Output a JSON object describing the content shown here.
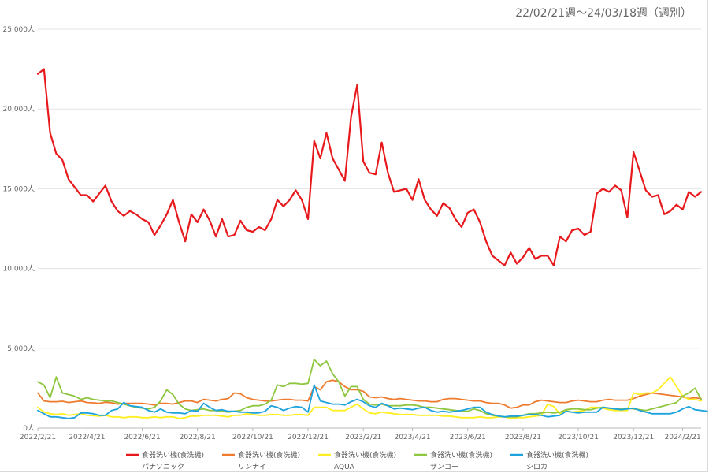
{
  "header": {
    "period": "22/02/21週〜24/03/18週（週別）"
  },
  "chart_data": {
    "type": "line",
    "title": "",
    "xlabel": "",
    "ylabel": "",
    "ylim": [
      0,
      25000
    ],
    "yticks": [
      0,
      5000,
      10000,
      15000,
      20000,
      25000
    ],
    "ytick_labels": [
      "0人",
      "5,000人",
      "10,000人",
      "15,000人",
      "20,000人",
      "25,000人"
    ],
    "xtick_labels": [
      "2022/2/21",
      "2022/4/21",
      "2022/6/21",
      "2022/8/21",
      "2022/10/21",
      "2022/12/21",
      "2023/2/21",
      "2023/4/21",
      "2023/6/21",
      "2023/8/21",
      "2023/10/21",
      "2023/12/21",
      "2024/2/21"
    ],
    "xtick_week_index": [
      0,
      8,
      17,
      26,
      35,
      44,
      53,
      61,
      70,
      79,
      88,
      97,
      105
    ],
    "x_week_count": 109,
    "grid": true,
    "legend_position": "bottom",
    "series": [
      {
        "name": "食器洗い機(食洗機)",
        "brand": "パナソニック",
        "color": "#e8191c",
        "values": [
          22200,
          22500,
          18500,
          17200,
          16800,
          15600,
          15100,
          14600,
          14600,
          14200,
          14700,
          15200,
          14200,
          13600,
          13300,
          13600,
          13400,
          13100,
          12900,
          12100,
          12700,
          13400,
          14300,
          12900,
          11700,
          13400,
          12900,
          13700,
          13000,
          12000,
          13100,
          12000,
          12100,
          13000,
          12400,
          12300,
          12600,
          12400,
          13100,
          14300,
          13900,
          14300,
          14900,
          14300,
          13100,
          18000,
          16900,
          18500,
          16900,
          16200,
          15500,
          19500,
          21500,
          16700,
          16000,
          15900,
          17900,
          16000,
          14800,
          14900,
          15000,
          14300,
          15600,
          14300,
          13700,
          13300,
          14100,
          13800,
          13100,
          12600,
          13500,
          13700,
          12900,
          11700,
          10800,
          10500,
          10200,
          11000,
          10300,
          10700,
          11300,
          10600,
          10800,
          10800,
          10200,
          12000,
          11700,
          12400,
          12500,
          12100,
          12300,
          14700,
          15000,
          14800,
          15200,
          14900,
          13200,
          17300,
          16100,
          14900,
          14500,
          14600,
          13400,
          13600,
          14000,
          13700,
          14800,
          14500,
          14800
        ]
      },
      {
        "name": "食器洗い機(食洗機)",
        "brand": "リンナイ",
        "color": "#ee7b2e",
        "values": [
          2200,
          1700,
          1650,
          1650,
          1680,
          1600,
          1650,
          1700,
          1600,
          1580,
          1550,
          1620,
          1580,
          1500,
          1550,
          1550,
          1550,
          1550,
          1500,
          1450,
          1550,
          1550,
          1500,
          1600,
          1700,
          1700,
          1600,
          1800,
          1750,
          1700,
          1800,
          1850,
          2200,
          2150,
          1900,
          1800,
          1750,
          1700,
          1700,
          1750,
          1800,
          1800,
          1750,
          1750,
          1700,
          2600,
          2400,
          2900,
          3000,
          2900,
          2600,
          2400,
          2400,
          2300,
          1950,
          1900,
          1950,
          1850,
          1800,
          1850,
          1800,
          1750,
          1700,
          1700,
          1650,
          1650,
          1800,
          1850,
          1850,
          1800,
          1750,
          1700,
          1700,
          1600,
          1550,
          1550,
          1450,
          1250,
          1300,
          1450,
          1450,
          1650,
          1750,
          1700,
          1650,
          1600,
          1600,
          1700,
          1750,
          1700,
          1650,
          1650,
          1750,
          1800,
          1750,
          1750,
          1750,
          1850,
          2000,
          2100,
          2200,
          2150,
          2100,
          2050,
          2000,
          1950,
          1850,
          1900,
          1850
        ]
      },
      {
        "name": "食器洗い機(食洗機)",
        "brand": "AQUA",
        "color": "#ffee22",
        "values": [
          1300,
          1000,
          900,
          850,
          900,
          800,
          850,
          900,
          800,
          780,
          750,
          800,
          700,
          700,
          650,
          700,
          700,
          650,
          650,
          700,
          650,
          700,
          700,
          600,
          650,
          750,
          750,
          800,
          800,
          800,
          750,
          700,
          800,
          800,
          900,
          850,
          800,
          800,
          850,
          850,
          800,
          800,
          850,
          850,
          800,
          1300,
          1300,
          1300,
          1100,
          1100,
          1100,
          1300,
          1500,
          1200,
          950,
          900,
          1000,
          950,
          900,
          850,
          850,
          850,
          800,
          800,
          800,
          800,
          750,
          750,
          700,
          650,
          650,
          650,
          700,
          650,
          650,
          700,
          700,
          600,
          650,
          650,
          700,
          750,
          800,
          1500,
          1350,
          900,
          1100,
          1000,
          1050,
          1100,
          1300,
          1300,
          1250,
          1150,
          1100,
          1100,
          1100,
          2200,
          2100,
          2200,
          2200,
          2400,
          2800,
          3200,
          2600,
          2000,
          1800,
          1800,
          1700
        ]
      },
      {
        "name": "食器洗い機(食洗機)",
        "brand": "サンコー",
        "color": "#8ec63f",
        "values": [
          2900,
          2700,
          1900,
          3200,
          2200,
          2100,
          2000,
          1800,
          1900,
          1800,
          1750,
          1700,
          1700,
          1600,
          1500,
          1400,
          1300,
          1250,
          1200,
          1300,
          1700,
          2400,
          2100,
          1500,
          1200,
          1100,
          1150,
          1200,
          1100,
          1100,
          1050,
          1000,
          1050,
          1100,
          1300,
          1400,
          1400,
          1500,
          1750,
          2700,
          2600,
          2800,
          2800,
          2750,
          2800,
          4300,
          3900,
          4200,
          3400,
          2900,
          2000,
          2600,
          2600,
          1800,
          1500,
          1450,
          1500,
          1400,
          1400,
          1400,
          1450,
          1450,
          1400,
          1300,
          1300,
          1250,
          1200,
          1150,
          1100,
          1050,
          1050,
          1200,
          1100,
          900,
          800,
          750,
          700,
          700,
          700,
          800,
          900,
          900,
          950,
          1000,
          950,
          1000,
          1150,
          1200,
          1200,
          1150,
          1150,
          1250,
          1300,
          1250,
          1200,
          1200,
          1250,
          1200,
          1150,
          1100,
          1200,
          1300,
          1400,
          1500,
          1600,
          2000,
          2200,
          2500,
          1800
        ]
      },
      {
        "name": "食器洗い機(食洗機)",
        "brand": "シロカ",
        "color": "#1ea3dd",
        "values": [
          1100,
          900,
          700,
          700,
          650,
          600,
          650,
          950,
          950,
          900,
          800,
          800,
          1100,
          1200,
          1600,
          1400,
          1350,
          1300,
          1100,
          1000,
          1200,
          1000,
          950,
          950,
          900,
          1100,
          1050,
          1550,
          1300,
          1100,
          1150,
          1050,
          1050,
          1000,
          1000,
          950,
          950,
          1050,
          1400,
          1300,
          1100,
          1250,
          1350,
          1300,
          1000,
          2700,
          1700,
          1600,
          1500,
          1500,
          1450,
          1650,
          1800,
          1650,
          1400,
          1300,
          1550,
          1400,
          1200,
          1250,
          1200,
          1150,
          1250,
          1300,
          1100,
          1000,
          1050,
          1000,
          1050,
          1100,
          1200,
          1300,
          1300,
          1000,
          850,
          750,
          700,
          750,
          750,
          800,
          850,
          850,
          800,
          700,
          750,
          800,
          1050,
          1000,
          950,
          1000,
          1000,
          1000,
          1300,
          1250,
          1200,
          1150,
          1200,
          1250,
          1100,
          1000,
          900,
          900,
          900,
          900,
          1000,
          1200,
          1350,
          1150,
          1100,
          1050
        ]
      }
    ]
  }
}
